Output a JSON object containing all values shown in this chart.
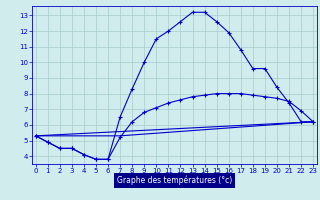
{
  "xlabel": "Graphe des températures (°c)",
  "bg_color": "#d0ecec",
  "grid_color": "#a8cccc",
  "line_color": "#0000cc",
  "line1_x": [
    0,
    1,
    2,
    3,
    4,
    5,
    6,
    7,
    8,
    9,
    10,
    11,
    12,
    13,
    14,
    15,
    16,
    17,
    18,
    19,
    20,
    21,
    22,
    23
  ],
  "line1_y": [
    5.3,
    4.9,
    4.5,
    4.5,
    4.1,
    3.8,
    3.8,
    6.5,
    8.3,
    10.0,
    11.5,
    12.0,
    12.6,
    13.2,
    13.2,
    12.6,
    11.9,
    10.8,
    9.6,
    9.6,
    8.4,
    7.4,
    6.2,
    6.2
  ],
  "line2_x": [
    0,
    7,
    23
  ],
  "line2_y": [
    5.3,
    5.3,
    6.2
  ],
  "line3_x": [
    0,
    1,
    2,
    3,
    4,
    5,
    6,
    7,
    8,
    9,
    10,
    11,
    12,
    13,
    14,
    15,
    16,
    17,
    18,
    19,
    20,
    21,
    22,
    23
  ],
  "line3_y": [
    5.3,
    4.9,
    4.5,
    4.5,
    4.1,
    3.8,
    3.8,
    5.2,
    6.2,
    6.8,
    7.1,
    7.4,
    7.6,
    7.8,
    7.9,
    8.0,
    8.0,
    8.0,
    7.9,
    7.8,
    7.7,
    7.5,
    6.9,
    6.2
  ],
  "line4_x": [
    0,
    23
  ],
  "line4_y": [
    5.3,
    6.2
  ],
  "xlim": [
    -0.3,
    23.3
  ],
  "ylim": [
    3.5,
    13.6
  ],
  "yticks": [
    4,
    5,
    6,
    7,
    8,
    9,
    10,
    11,
    12,
    13
  ],
  "xticks": [
    0,
    1,
    2,
    3,
    4,
    5,
    6,
    7,
    8,
    9,
    10,
    11,
    12,
    13,
    14,
    15,
    16,
    17,
    18,
    19,
    20,
    21,
    22,
    23
  ]
}
